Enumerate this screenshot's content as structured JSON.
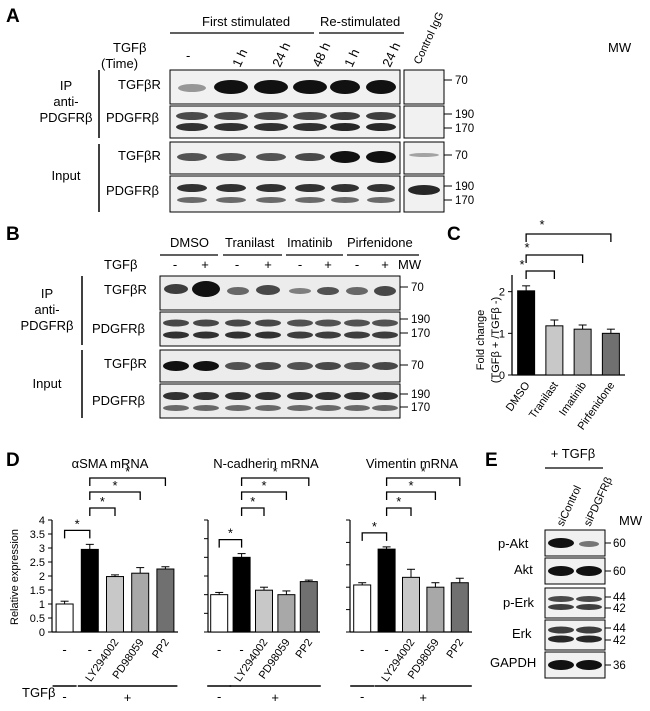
{
  "panels": {
    "A": "A",
    "B": "B",
    "C": "C",
    "D": "D",
    "E": "E"
  },
  "panel_a": {
    "group_first": "First stimulated",
    "group_re": "Re-stimulated",
    "control": "Control IgG",
    "treatment_label": "TGFβ",
    "time_label": "(Time)",
    "lanes": [
      "-",
      "1 h",
      "24 h",
      "48 h",
      "1 h",
      "24 h"
    ],
    "mw": "MW",
    "ip_label": [
      "IP",
      "anti-",
      "PDGFRβ"
    ],
    "input_label": "Input",
    "rows": [
      "TGFβR",
      "PDGFRβ",
      "TGFβR",
      "PDGFRβ"
    ],
    "markers": [
      "70",
      "190",
      "170",
      "70",
      "190",
      "170"
    ]
  },
  "panel_b": {
    "treatments": [
      "DMSO",
      "Tranilast",
      "Imatinib",
      "Pirfenidone"
    ],
    "treatment_label": "TGFβ",
    "lanes": [
      "-",
      "+",
      "-",
      "+",
      "-",
      "+",
      "-",
      "+"
    ],
    "mw": "MW",
    "ip_label": [
      "IP",
      "anti-",
      "PDGFRβ"
    ],
    "input_label": "Input",
    "rows": [
      "TGFβR",
      "PDGFRβ",
      "TGFβR",
      "PDGFRβ"
    ],
    "markers": [
      "70",
      "190",
      "170",
      "70",
      "190",
      "170"
    ]
  },
  "panel_c": {
    "ylabel": [
      "Fold change",
      "(TGFβ + /TGFβ -)"
    ],
    "sig": [
      "*",
      "*",
      "*"
    ]
  },
  "panel_d": {
    "titles": [
      "αSMA mRNA",
      "N-cadherin mRNA",
      "Vimentin mRNA"
    ],
    "ylabel": "Relative expression",
    "tgf_label": "TGFβ",
    "minus": "-",
    "plus": "+",
    "sig": "*"
  },
  "panel_e": {
    "header": "+ TGFβ",
    "lanes": [
      "siControl",
      "siPDGFRβ"
    ],
    "mw": "MW",
    "rows": [
      "p-Akt",
      "Akt",
      "p-Erk",
      "Erk",
      "GAPDH"
    ],
    "markers": [
      "60",
      "60",
      "44",
      "42",
      "44",
      "42",
      "36"
    ]
  },
  "chart_data": [
    {
      "type": "bar",
      "panel": "C",
      "title": "",
      "ylabel": "Fold change (TGFβ + /TGFβ -)",
      "categories": [
        "DMSO",
        "Tranilast",
        "Imatinib",
        "Pirfenidone"
      ],
      "values": [
        2.02,
        1.18,
        1.1,
        1.0
      ],
      "errors": [
        0.12,
        0.14,
        0.1,
        0.1
      ],
      "colors": [
        "#000000",
        "#c8c8c8",
        "#a8a8a8",
        "#707070"
      ],
      "ylim": [
        0,
        2.4
      ],
      "yticks": [
        0,
        1,
        2
      ],
      "grid": false
    },
    {
      "type": "bar",
      "panel": "D",
      "title": "αSMA mRNA",
      "ylabel": "Relative expression",
      "categories": [
        "-",
        "-",
        "LY294002",
        "PD98059",
        "PP2"
      ],
      "values": [
        1.0,
        2.95,
        1.98,
        2.1,
        2.25
      ],
      "errors": [
        0.1,
        0.18,
        0.06,
        0.2,
        0.08
      ],
      "colors": [
        "#ffffff",
        "#000000",
        "#c8c8c8",
        "#a8a8a8",
        "#707070"
      ],
      "ylim": [
        0,
        4
      ],
      "yticks": [
        0,
        0.5,
        1,
        1.5,
        2,
        2.5,
        3,
        3.5,
        4
      ]
    },
    {
      "type": "bar",
      "panel": "D",
      "title": "N-cadherin mRNA",
      "categories": [
        "-",
        "-",
        "LY294002",
        "PD98059",
        "PP2"
      ],
      "values": [
        1.0,
        2.0,
        1.12,
        1.0,
        1.35
      ],
      "errors": [
        0.06,
        0.1,
        0.08,
        0.1,
        0.04
      ],
      "colors": [
        "#ffffff",
        "#000000",
        "#c8c8c8",
        "#a8a8a8",
        "#707070"
      ],
      "ylim": [
        0,
        3
      ]
    },
    {
      "type": "bar",
      "panel": "D",
      "title": "Vimentin mRNA",
      "categories": [
        "-",
        "-",
        "LY294002",
        "PD98059",
        "PP2"
      ],
      "values": [
        1.05,
        1.85,
        1.22,
        1.0,
        1.1
      ],
      "errors": [
        0.05,
        0.05,
        0.18,
        0.1,
        0.1
      ],
      "colors": [
        "#ffffff",
        "#000000",
        "#c8c8c8",
        "#a8a8a8",
        "#707070"
      ],
      "ylim": [
        0,
        2.5
      ]
    }
  ]
}
